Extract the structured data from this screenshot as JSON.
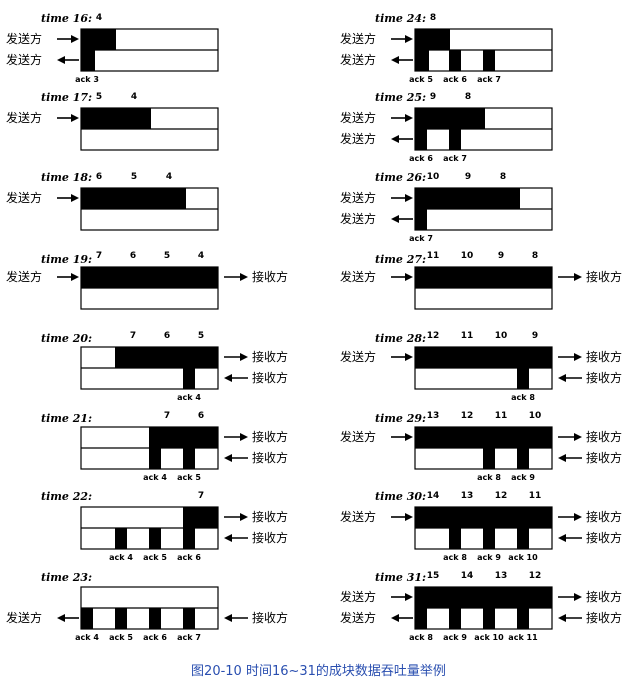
{
  "caption": "图20-10 时间16~31的成块数据吞吐量举例",
  "sender_label": "发送方",
  "receiver_label": "接收方",
  "panels": [
    {
      "time": "time 16:",
      "top": [
        {
          "n": "4",
          "f": [
            0,
            35
          ]
        }
      ],
      "bot": [
        {
          "a": "ack 3",
          "f": [
            0,
            14
          ]
        }
      ],
      "sTop": true,
      "sBot": true,
      "rTop": false,
      "rBot": false
    },
    {
      "time": "time 17:",
      "top": [
        {
          "n": "5",
          "f": [
            0,
            35
          ]
        },
        {
          "n": "4",
          "f": [
            35,
            70
          ]
        }
      ],
      "bot": [],
      "sTop": true,
      "sBot": false,
      "rTop": false,
      "rBot": false
    },
    {
      "time": "time 18:",
      "top": [
        {
          "n": "6",
          "f": [
            0,
            35
          ]
        },
        {
          "n": "5",
          "f": [
            35,
            70
          ]
        },
        {
          "n": "4",
          "f": [
            70,
            105
          ]
        }
      ],
      "bot": [],
      "sTop": true,
      "sBot": false,
      "rTop": false,
      "rBot": false
    },
    {
      "time": "time 19:",
      "top": [
        {
          "n": "7",
          "f": [
            0,
            34
          ]
        },
        {
          "n": "6",
          "f": [
            34,
            68
          ]
        },
        {
          "n": "5",
          "f": [
            68,
            102
          ]
        },
        {
          "n": "4",
          "f": [
            102,
            137
          ]
        }
      ],
      "bot": [],
      "sTop": true,
      "sBot": false,
      "rTop": true,
      "rBot": false
    },
    {
      "time": "time 20:",
      "top": [
        {
          "n": "7",
          "f": [
            34,
            68
          ]
        },
        {
          "n": "6",
          "f": [
            68,
            102
          ]
        },
        {
          "n": "5",
          "f": [
            102,
            137
          ]
        }
      ],
      "bot": [
        {
          "a": "ack 4",
          "f": [
            102,
            114
          ]
        }
      ],
      "sTop": false,
      "sBot": false,
      "rTop": true,
      "rBot": true
    },
    {
      "time": "time 21:",
      "top": [
        {
          "n": "7",
          "f": [
            68,
            102
          ]
        },
        {
          "n": "6",
          "f": [
            102,
            137
          ]
        }
      ],
      "bot": [
        {
          "a": "ack 4",
          "f": [
            68,
            80
          ]
        },
        {
          "a": "ack 5",
          "f": [
            102,
            114
          ]
        }
      ],
      "sTop": false,
      "sBot": false,
      "rTop": true,
      "rBot": true
    },
    {
      "time": "time 22:",
      "top": [
        {
          "n": "7",
          "f": [
            102,
            137
          ]
        }
      ],
      "bot": [
        {
          "a": "ack 4",
          "f": [
            34,
            46
          ]
        },
        {
          "a": "ack 5",
          "f": [
            68,
            80
          ]
        },
        {
          "a": "ack 6",
          "f": [
            102,
            114
          ]
        }
      ],
      "sTop": false,
      "sBot": false,
      "rTop": true,
      "rBot": true
    },
    {
      "time": "time 23:",
      "top": [],
      "bot": [
        {
          "a": "ack 4",
          "f": [
            0,
            12
          ]
        },
        {
          "a": "ack 5",
          "f": [
            34,
            46
          ]
        },
        {
          "a": "ack 6",
          "f": [
            68,
            80
          ]
        },
        {
          "a": "ack 7",
          "f": [
            102,
            114
          ]
        }
      ],
      "sTop": false,
      "sBot": true,
      "rTop": false,
      "rBot": true
    },
    {
      "time": "time 24:",
      "top": [
        {
          "n": "8",
          "f": [
            0,
            35
          ]
        }
      ],
      "bot": [
        {
          "a": "ack 5",
          "f": [
            0,
            14
          ]
        },
        {
          "a": "ack 6",
          "f": [
            34,
            46
          ]
        },
        {
          "a": "ack 7",
          "f": [
            68,
            80
          ]
        }
      ],
      "sTop": true,
      "sBot": true,
      "rTop": false,
      "rBot": false
    },
    {
      "time": "time 25:",
      "top": [
        {
          "n": "9",
          "f": [
            0,
            35
          ]
        },
        {
          "n": "8",
          "f": [
            35,
            70
          ]
        }
      ],
      "bot": [
        {
          "a": "ack 6",
          "f": [
            0,
            12
          ]
        },
        {
          "a": "ack 7",
          "f": [
            34,
            46
          ]
        }
      ],
      "sTop": true,
      "sBot": true,
      "rTop": false,
      "rBot": false
    },
    {
      "time": "time 26:",
      "top": [
        {
          "n": "10",
          "f": [
            0,
            35
          ]
        },
        {
          "n": "9",
          "f": [
            35,
            70
          ]
        },
        {
          "n": "8",
          "f": [
            70,
            105
          ]
        }
      ],
      "bot": [
        {
          "a": "ack 7",
          "f": [
            0,
            12
          ]
        }
      ],
      "sTop": true,
      "sBot": true,
      "rTop": false,
      "rBot": false
    },
    {
      "time": "time 27:",
      "top": [
        {
          "n": "11",
          "f": [
            0,
            34
          ]
        },
        {
          "n": "10",
          "f": [
            34,
            68
          ]
        },
        {
          "n": "9",
          "f": [
            68,
            102
          ]
        },
        {
          "n": "8",
          "f": [
            102,
            137
          ]
        }
      ],
      "bot": [],
      "sTop": true,
      "sBot": false,
      "rTop": true,
      "rBot": false
    },
    {
      "time": "time 28:",
      "top": [
        {
          "n": "12",
          "f": [
            0,
            34
          ]
        },
        {
          "n": "11",
          "f": [
            34,
            68
          ]
        },
        {
          "n": "10",
          "f": [
            68,
            102
          ]
        },
        {
          "n": "9",
          "f": [
            102,
            137
          ]
        }
      ],
      "bot": [
        {
          "a": "ack 8",
          "f": [
            102,
            114
          ]
        }
      ],
      "sTop": true,
      "sBot": false,
      "rTop": true,
      "rBot": true
    },
    {
      "time": "time 29:",
      "top": [
        {
          "n": "13",
          "f": [
            0,
            34
          ]
        },
        {
          "n": "12",
          "f": [
            34,
            68
          ]
        },
        {
          "n": "11",
          "f": [
            68,
            102
          ]
        },
        {
          "n": "10",
          "f": [
            102,
            137
          ]
        }
      ],
      "bot": [
        {
          "a": "ack 8",
          "f": [
            68,
            80
          ]
        },
        {
          "a": "ack 9",
          "f": [
            102,
            114
          ]
        }
      ],
      "sTop": true,
      "sBot": false,
      "rTop": true,
      "rBot": true
    },
    {
      "time": "time 30:",
      "top": [
        {
          "n": "14",
          "f": [
            0,
            34
          ]
        },
        {
          "n": "13",
          "f": [
            34,
            68
          ]
        },
        {
          "n": "12",
          "f": [
            68,
            102
          ]
        },
        {
          "n": "11",
          "f": [
            102,
            137
          ]
        }
      ],
      "bot": [
        {
          "a": "ack 8",
          "f": [
            34,
            46
          ]
        },
        {
          "a": "ack 9",
          "f": [
            68,
            80
          ]
        },
        {
          "a": "ack 10",
          "f": [
            102,
            114
          ]
        }
      ],
      "sTop": true,
      "sBot": false,
      "rTop": true,
      "rBot": true
    },
    {
      "time": "time 31:",
      "top": [
        {
          "n": "15",
          "f": [
            0,
            34
          ]
        },
        {
          "n": "14",
          "f": [
            34,
            68
          ]
        },
        {
          "n": "13",
          "f": [
            68,
            102
          ]
        },
        {
          "n": "12",
          "f": [
            102,
            137
          ]
        }
      ],
      "bot": [
        {
          "a": "ack 8",
          "f": [
            0,
            12
          ]
        },
        {
          "a": "ack 9",
          "f": [
            34,
            46
          ]
        },
        {
          "a": "ack 10",
          "f": [
            68,
            80
          ]
        },
        {
          "a": "ack 11",
          "f": [
            102,
            114
          ]
        }
      ],
      "sTop": true,
      "sBot": true,
      "rTop": true,
      "rBot": true
    }
  ]
}
